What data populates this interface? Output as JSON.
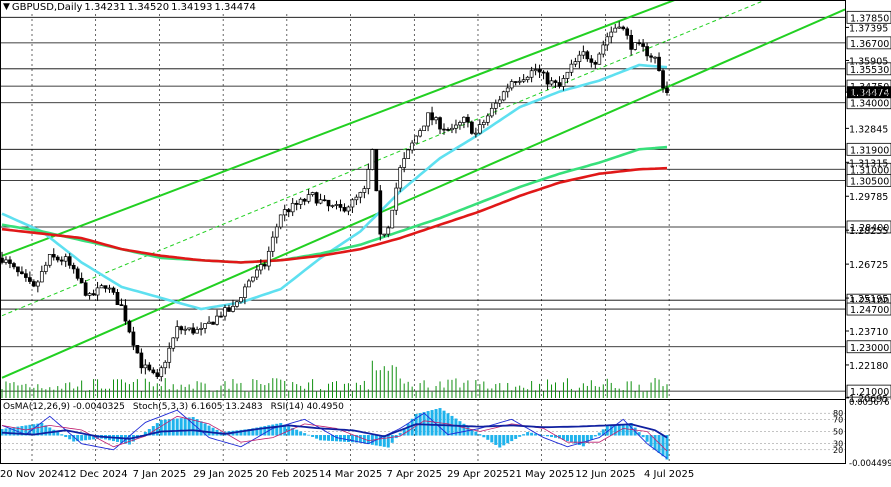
{
  "header": {
    "symbol": "GBPUSD,Daily",
    "o": "1.34231",
    "h": "1.34520",
    "l": "1.34193",
    "c": "1.34474"
  },
  "oscillator_header": {
    "osma": "OsMA(12,26,9) -0.0040325",
    "stoch": "Stoch(5,3,3) 6.1605 13.2483",
    "rsi": "RSI(14) 40.4950"
  },
  "colors": {
    "candle": "#000000",
    "ema_fast": "#5ee0f0",
    "ema_mid": "#37e07a",
    "ema_slow": "#e01818",
    "channel": "#22d022",
    "osma": "#1fb3ec",
    "stoch_main": "#1f2bd6",
    "stoch_signal": "#c01f6f",
    "rsi": "#1020a0",
    "level_box": "#000000"
  },
  "chart_data": {
    "type": "candlestick",
    "title": "GBPUSD,Daily",
    "ylim": [
      1.2069,
      1.38
    ],
    "y_ticks": [
      "1.37395",
      "1.35905",
      "1.34476",
      "1.32845",
      "1.31315",
      "1.29785",
      "1.28255",
      "1.26725",
      "1.25195",
      "1.23710",
      "1.22180",
      "1.20695"
    ],
    "levels": [
      "1.37850",
      "1.36700",
      "1.35530",
      "1.34750",
      "1.34000",
      "1.31900",
      "1.31000",
      "1.30500",
      "1.28400",
      "1.25100",
      "1.24700",
      "1.23000",
      "1.21000"
    ],
    "current_price": "1.34474",
    "x_labels": [
      "20 Nov 2024",
      "12 Dec 2024",
      "7 Jan 2025",
      "29 Jan 2025",
      "20 Feb 2025",
      "14 Mar 2025",
      "7 Apr 2025",
      "29 Apr 2025",
      "21 May 2025",
      "12 Jun 2025",
      "4 Jul 2025"
    ],
    "x_label_index": [
      0,
      16,
      32,
      48,
      64,
      80,
      96,
      112,
      128,
      144,
      160
    ],
    "close_anchors": [
      [
        0,
        1.27
      ],
      [
        8,
        1.256
      ],
      [
        12,
        1.27
      ],
      [
        16,
        1.269
      ],
      [
        22,
        1.252
      ],
      [
        26,
        1.258
      ],
      [
        30,
        1.248
      ],
      [
        35,
        1.222
      ],
      [
        39,
        1.215
      ],
      [
        44,
        1.238
      ],
      [
        50,
        1.237
      ],
      [
        55,
        1.245
      ],
      [
        58,
        1.247
      ],
      [
        62,
        1.26
      ],
      [
        66,
        1.267
      ],
      [
        70,
        1.29
      ],
      [
        74,
        1.294
      ],
      [
        78,
        1.298
      ],
      [
        82,
        1.293
      ],
      [
        85,
        1.292
      ],
      [
        88,
        1.295
      ],
      [
        91,
        1.3
      ],
      [
        93,
        1.318
      ],
      [
        95,
        1.279
      ],
      [
        97,
        1.285
      ],
      [
        100,
        1.31
      ],
      [
        104,
        1.325
      ],
      [
        107,
        1.334
      ],
      [
        110,
        1.33
      ],
      [
        113,
        1.327
      ],
      [
        116,
        1.332
      ],
      [
        119,
        1.326
      ],
      [
        122,
        1.334
      ],
      [
        125,
        1.342
      ],
      [
        128,
        1.35
      ],
      [
        131,
        1.352
      ],
      [
        134,
        1.355
      ],
      [
        137,
        1.35
      ],
      [
        140,
        1.347
      ],
      [
        143,
        1.356
      ],
      [
        146,
        1.362
      ],
      [
        149,
        1.359
      ],
      [
        152,
        1.37
      ],
      [
        155,
        1.376
      ],
      [
        158,
        1.366
      ],
      [
        161,
        1.364
      ],
      [
        164,
        1.36
      ],
      [
        166,
        1.348
      ],
      [
        167,
        1.3447
      ]
    ],
    "series": [
      {
        "id": "ema_fast",
        "anchors": [
          [
            0,
            1.29
          ],
          [
            10,
            1.282
          ],
          [
            20,
            1.268
          ],
          [
            30,
            1.257
          ],
          [
            40,
            1.252
          ],
          [
            50,
            1.247
          ],
          [
            60,
            1.25
          ],
          [
            70,
            1.256
          ],
          [
            80,
            1.27
          ],
          [
            90,
            1.282
          ],
          [
            100,
            1.3
          ],
          [
            110,
            1.315
          ],
          [
            120,
            1.326
          ],
          [
            130,
            1.338
          ],
          [
            140,
            1.345
          ],
          [
            150,
            1.35
          ],
          [
            160,
            1.357
          ],
          [
            167,
            1.356
          ]
        ]
      },
      {
        "id": "ema_mid",
        "anchors": [
          [
            0,
            1.285
          ],
          [
            10,
            1.282
          ],
          [
            20,
            1.278
          ],
          [
            30,
            1.274
          ],
          [
            40,
            1.27
          ],
          [
            50,
            1.269
          ],
          [
            60,
            1.268
          ],
          [
            70,
            1.269
          ],
          [
            80,
            1.272
          ],
          [
            90,
            1.276
          ],
          [
            100,
            1.282
          ],
          [
            110,
            1.288
          ],
          [
            120,
            1.295
          ],
          [
            130,
            1.302
          ],
          [
            140,
            1.308
          ],
          [
            150,
            1.313
          ],
          [
            160,
            1.319
          ],
          [
            167,
            1.32
          ]
        ]
      },
      {
        "id": "ema_slow",
        "anchors": [
          [
            0,
            1.283
          ],
          [
            10,
            1.281
          ],
          [
            20,
            1.279
          ],
          [
            30,
            1.274
          ],
          [
            40,
            1.271
          ],
          [
            50,
            1.269
          ],
          [
            60,
            1.268
          ],
          [
            70,
            1.269
          ],
          [
            80,
            1.271
          ],
          [
            90,
            1.274
          ],
          [
            100,
            1.279
          ],
          [
            110,
            1.285
          ],
          [
            120,
            1.291
          ],
          [
            130,
            1.298
          ],
          [
            140,
            1.304
          ],
          [
            150,
            1.308
          ],
          [
            160,
            1.31
          ],
          [
            167,
            1.3105
          ]
        ]
      }
    ],
    "channels": [
      {
        "id": "channel_upper",
        "start": [
          0,
          1.271
        ],
        "end": [
          167,
          1.385
        ]
      },
      {
        "id": "channel_lower",
        "start": [
          0,
          1.216
        ],
        "end": [
          167,
          1.347
        ]
      },
      {
        "id": "channel_mid",
        "start": [
          0,
          1.244
        ],
        "end": [
          167,
          1.368
        ],
        "dashed": true
      }
    ],
    "oscillator": {
      "ylim": [
        -0.0044995,
        0.0056767
      ],
      "y_ticks": [
        "0.0056767",
        "-0.0044995"
      ],
      "levels": [
        "80",
        "70",
        "50",
        "30",
        "20"
      ],
      "osma_anchors": [
        [
          0,
          0.001
        ],
        [
          10,
          0.002
        ],
        [
          18,
          -0.001
        ],
        [
          25,
          -0.0005
        ],
        [
          32,
          -0.0015
        ],
        [
          40,
          0.0025
        ],
        [
          48,
          0.003
        ],
        [
          55,
          0.0005
        ],
        [
          62,
          0.001
        ],
        [
          70,
          0.002
        ],
        [
          80,
          -0.0008
        ],
        [
          90,
          -0.0012
        ],
        [
          97,
          -0.002
        ],
        [
          104,
          0.0035
        ],
        [
          110,
          0.0045
        ],
        [
          118,
          0.001
        ],
        [
          125,
          -0.002
        ],
        [
          132,
          0.0005
        ],
        [
          140,
          -0.0005
        ],
        [
          146,
          -0.0018
        ],
        [
          152,
          0.0015
        ],
        [
          158,
          0.002
        ],
        [
          163,
          -0.0018
        ],
        [
          167,
          -0.004
        ]
      ],
      "stoch_anchors": [
        [
          0,
          60
        ],
        [
          6,
          45
        ],
        [
          12,
          75
        ],
        [
          20,
          30
        ],
        [
          28,
          20
        ],
        [
          36,
          65
        ],
        [
          44,
          85
        ],
        [
          52,
          40
        ],
        [
          60,
          25
        ],
        [
          68,
          55
        ],
        [
          76,
          70
        ],
        [
          84,
          40
        ],
        [
          92,
          30
        ],
        [
          100,
          55
        ],
        [
          106,
          80
        ],
        [
          112,
          45
        ],
        [
          120,
          55
        ],
        [
          128,
          70
        ],
        [
          136,
          40
        ],
        [
          142,
          25
        ],
        [
          150,
          40
        ],
        [
          156,
          70
        ],
        [
          162,
          30
        ],
        [
          167,
          6
        ]
      ],
      "rsi_anchors": [
        [
          0,
          48
        ],
        [
          8,
          45
        ],
        [
          16,
          52
        ],
        [
          24,
          42
        ],
        [
          32,
          38
        ],
        [
          40,
          50
        ],
        [
          48,
          52
        ],
        [
          56,
          46
        ],
        [
          64,
          54
        ],
        [
          72,
          60
        ],
        [
          80,
          55
        ],
        [
          88,
          52
        ],
        [
          96,
          42
        ],
        [
          104,
          62
        ],
        [
          112,
          60
        ],
        [
          120,
          58
        ],
        [
          128,
          60
        ],
        [
          136,
          57
        ],
        [
          144,
          58
        ],
        [
          152,
          60
        ],
        [
          158,
          62
        ],
        [
          164,
          52
        ],
        [
          167,
          40
        ]
      ]
    }
  }
}
